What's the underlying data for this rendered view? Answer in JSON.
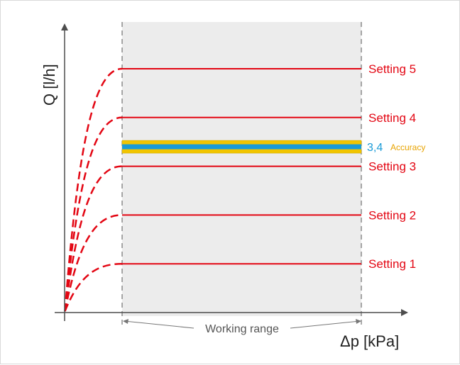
{
  "chart_data": {
    "type": "line",
    "title": "",
    "xlabel": "Δp [kPa]",
    "ylabel": "Q [l/h]",
    "working_range_label": "Working range",
    "series": [
      {
        "name": "Setting 1",
        "level": 1
      },
      {
        "name": "Setting 2",
        "level": 2
      },
      {
        "name": "Setting 3",
        "level": 3
      },
      {
        "name": "Setting 4",
        "level": 4
      },
      {
        "name": "Setting 5",
        "level": 5
      }
    ],
    "highlight": {
      "value_label": "3,4",
      "note": "Accuracy",
      "level": 3.4
    },
    "ylim": [
      0,
      5.5
    ],
    "colors": {
      "setting_line": "#e30613",
      "working_range_fill": "#ececec",
      "highlight_blue": "#1a9bd7",
      "highlight_yellow": "#f2c500",
      "axis": "#4d4d4d"
    }
  }
}
